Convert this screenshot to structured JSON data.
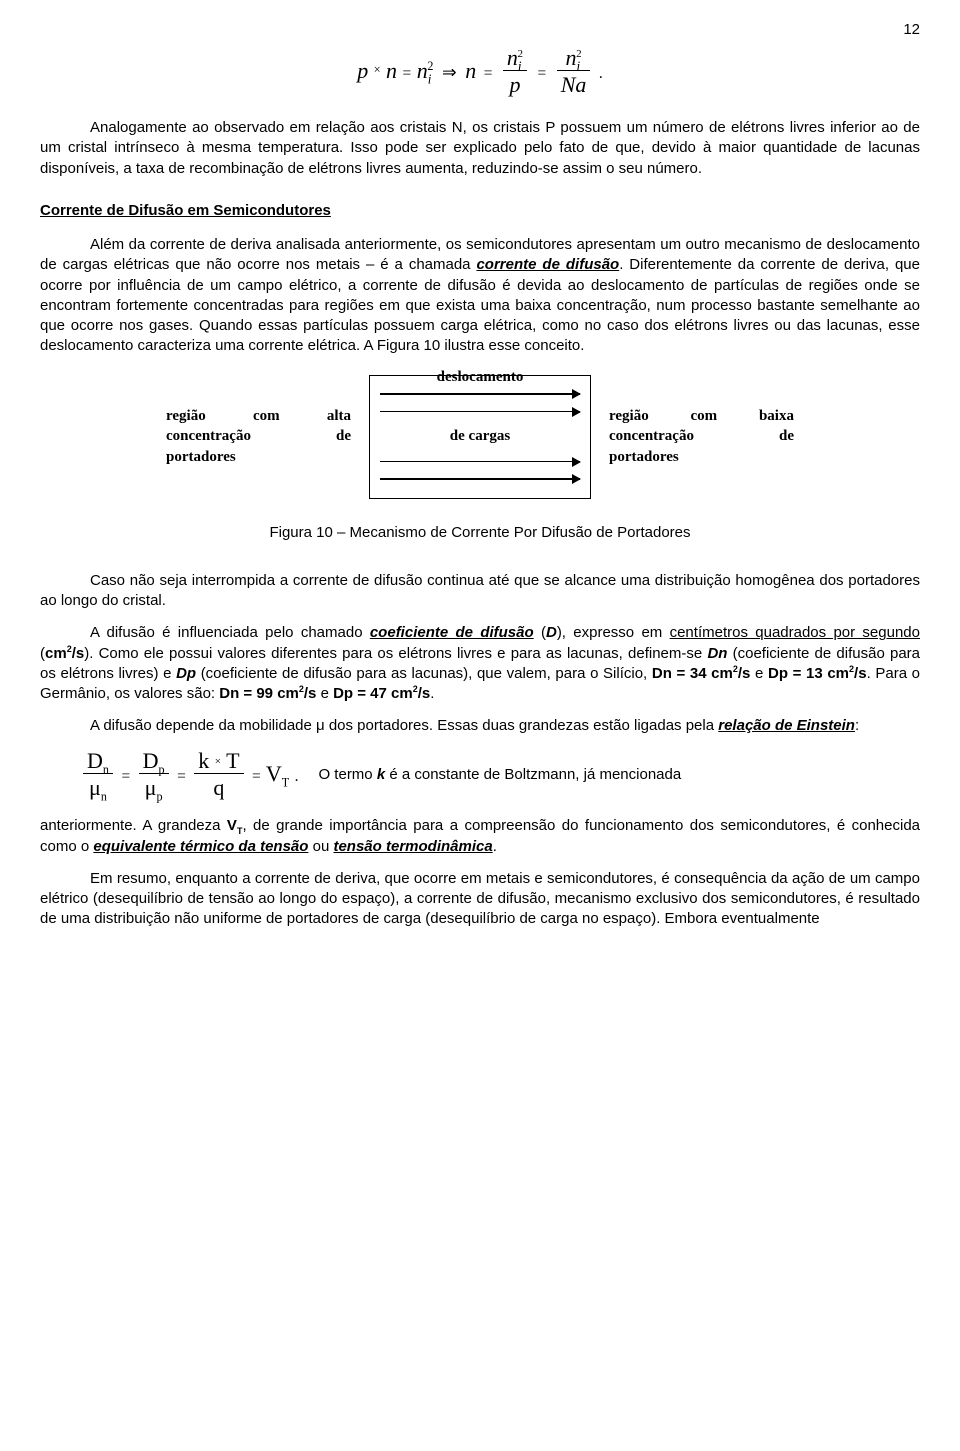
{
  "page_number": "12",
  "eq1": {
    "lhs_p": "p",
    "times": "×",
    "lhs_n": "n",
    "eq": "=",
    "ni": "n",
    "ni_sub": "i",
    "ni_sup": "2",
    "impl": "⇒",
    "n": "n",
    "frac1_num": "n",
    "frac1_num_sub": "i",
    "frac1_num_sup": "2",
    "frac1_den": "p",
    "frac2_num": "n",
    "frac2_num_sub": "i",
    "frac2_num_sup": "2",
    "frac2_den": "Na",
    "period": "."
  },
  "para1": "Analogamente ao observado em relação aos cristais N, os cristais P possuem um número de elétrons livres inferior ao de um cristal intrínseco à mesma temperatura.    Isso pode ser explicado pelo fato de que, devido à maior quantidade de lacunas disponíveis, a taxa de recombinação de elétrons livres aumenta, reduzindo-se assim o seu número.",
  "section_heading": "Corrente de Difusão em Semicondutores",
  "para2_a": "Além da corrente de deriva analisada anteriormente, os semicondutores apresentam um outro mecanismo de deslocamento de cargas elétricas que não ocorre nos metais – é a chamada ",
  "para2_term": "corrente de difusão",
  "para2_b": ".  Diferentemente da corrente de deriva, que ocorre por influência de um campo elétrico, a corrente de difusão é devida ao deslocamento de partículas de regiões onde se encontram fortemente concentradas para regiões em que exista uma baixa concentração, num processo bastante semelhante ao que ocorre nos gases.   Quando essas partículas possuem carga elétrica, como no caso dos elétrons livres ou das lacunas, esse deslocamento caracteriza uma corrente elétrica.   A Figura 10 ilustra esse conceito.",
  "diagram": {
    "left_l1a": "região",
    "left_l1b": "com",
    "left_l1c": "alta",
    "left_l2a": "concentração",
    "left_l2b": "de",
    "left_l3": "portadores",
    "top_label": "deslocamento",
    "mid_label": "de cargas",
    "right_l1a": "região",
    "right_l1b": "com",
    "right_l1c": "baixa",
    "right_l2a": "concentração",
    "right_l2b": "de",
    "right_l3": "portadores"
  },
  "fig_caption": "Figura 10 – Mecanismo de Corrente Por Difusão de Portadores",
  "para3": "Caso não seja interrompida a corrente de difusão continua até que se alcance uma distribuição homogênea dos portadores ao longo do cristal.",
  "para4_a": "A difusão é influenciada pelo chamado ",
  "para4_term": "coeficiente de difusão",
  "para4_b": " (",
  "para4_D": "D",
  "para4_c": "), expresso em ",
  "para4_unit_u": "centímetros quadrados por segundo",
  "para4_d": " (",
  "para4_unit_b": "cm",
  "para4_unit_sup": "2",
  "para4_unit_s": "/s",
  "para4_e": ").    Como ele possui valores diferentes para os elétrons livres e para as lacunas,  definem-se ",
  "para4_Dn": "Dn",
  "para4_f": " (coeficiente de difusão para os elétrons livres) e ",
  "para4_Dp": "Dp",
  "para4_g": " (coeficiente de difusão para as lacunas), que valem, para o Silício,  ",
  "para4_si_dn": "Dn = 34 cm",
  "para4_si_dn2": "/s",
  "para4_and": " e ",
  "para4_si_dp": "Dp = 13 cm",
  "para4_si_dp2": "/s",
  "para4_h": ".    Para o Germânio, os valores são: ",
  "para4_ge_dn": "Dn = 99 cm",
  "para4_ge_dn2": "/s",
  "para4_ge_dp": "Dp = 47 cm",
  "para4_ge_dp2": "/s",
  "para4_i": ".",
  "para5_a": "A difusão depende da mobilidade μ dos portadores.    Essas duas grandezas estão ligadas pela ",
  "para5_term": "relação de Einstein",
  "para5_b": ":",
  "eq2": {
    "Dn": "D",
    "n": "n",
    "mu": "μ",
    "Dp": "D",
    "p": "p",
    "k": "k",
    "times": "×",
    "T": "T",
    "q": "q",
    "VT": "V",
    "Tsub": "T",
    "period": "."
  },
  "para6_a": "O termo ",
  "para6_k": "k",
  "para6_b": " é a constante de Boltzmann, já mencionada",
  "para7_a": "anteriormente.  A grandeza ",
  "para7_vt": "V",
  "para7_vt_sub": "T",
  "para7_b": ", de grande importância para a compreensão do funcionamento dos semicondutores,  é  conhecida  como  o  ",
  "para7_term1": "equivalente  térmico  da  tensão",
  "para7_or": "  ou  ",
  "para7_term2": "tensão termodinâmica",
  "para7_c": ".",
  "para8": "Em resumo, enquanto a corrente de deriva, que ocorre em metais e semicondutores, é consequência da ação de um campo elétrico (desequilíbrio de tensão ao longo do espaço), a corrente de difusão, mecanismo exclusivo dos semicondutores, é resultado de uma distribuição não uniforme de portadores de carga (desequilíbrio de carga no espaço).   Embora eventualmente"
}
